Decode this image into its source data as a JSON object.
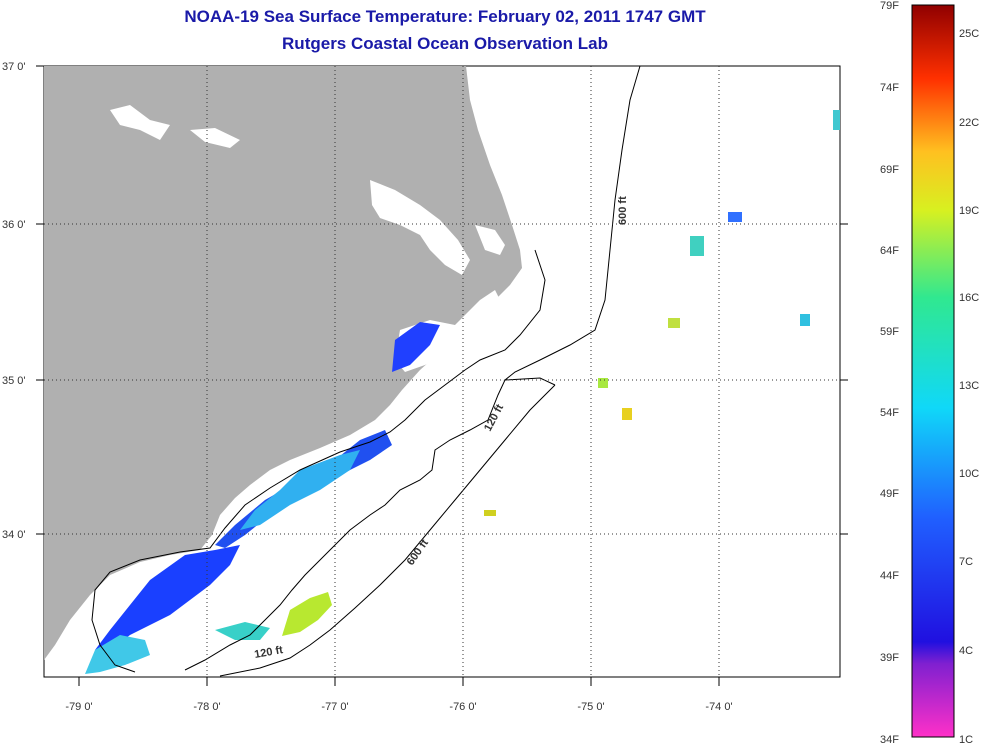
{
  "titles": {
    "line1": "NOAA-19 Sea Surface Temperature:  February 02, 2011 1747 GMT",
    "line2": "Rutgers Coastal Ocean Observation Lab"
  },
  "axes": {
    "lon_labels": [
      "-79 0'",
      "-78 0'",
      "-77 0'",
      "-76 0'",
      "-75 0'",
      "-74 0'"
    ],
    "lat_labels": [
      "37 0'",
      "36 0'",
      "35 0'",
      "34 0'"
    ]
  },
  "contours": {
    "c600_north": "600 ft",
    "c120_mid": "120 ft",
    "c600_south": "600 ft",
    "c120_south": "120 ft"
  },
  "colorbar": {
    "fahrenheit": [
      "79F",
      "74F",
      "69F",
      "64F",
      "59F",
      "54F",
      "49F",
      "44F",
      "39F",
      "34F"
    ],
    "celsius": [
      "25C",
      "22C",
      "19C",
      "16C",
      "13C",
      "10C",
      "7C",
      "4C",
      "1C"
    ]
  },
  "colors": {
    "land": "#b0b0b0",
    "ocean": "#ffffff",
    "title": "#1a1aa8",
    "sst_cold": "#2040ff",
    "sst_mid": "#30c0e8",
    "sst_warm": "#d0e820"
  }
}
